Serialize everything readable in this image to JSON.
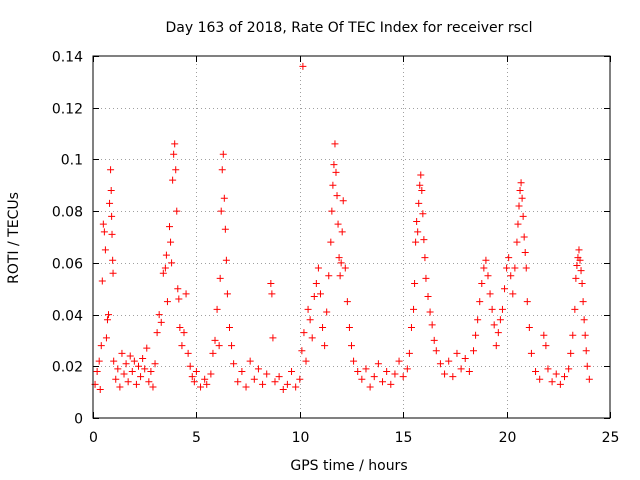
{
  "chart_data": {
    "type": "scatter",
    "title": "Day 163 of 2018, Rate Of TEC Index for receiver rscl",
    "xlabel": "GPS time / hours",
    "ylabel": "ROTI / TECUs",
    "xlim": [
      0,
      25
    ],
    "ylim": [
      0,
      0.14
    ],
    "xticks": [
      0,
      5,
      10,
      15,
      20,
      25
    ],
    "xtick_labels": [
      "0",
      "5",
      "10",
      "15",
      "20",
      "25"
    ],
    "yticks": [
      0,
      0.02,
      0.04,
      0.06,
      0.08,
      0.1,
      0.12,
      0.14
    ],
    "ytick_labels": [
      "0",
      "0.02",
      "0.04",
      "0.06",
      "0.08",
      "0.1",
      "0.12",
      "0.14"
    ],
    "grid": true,
    "marker": "+",
    "color": "#ff0000",
    "series": [
      {
        "name": "ROTI",
        "points": [
          [
            0.1,
            0.013
          ],
          [
            0.2,
            0.018
          ],
          [
            0.3,
            0.022
          ],
          [
            0.35,
            0.011
          ],
          [
            0.4,
            0.028
          ],
          [
            0.45,
            0.053
          ],
          [
            0.5,
            0.075
          ],
          [
            0.55,
            0.072
          ],
          [
            0.6,
            0.065
          ],
          [
            0.65,
            0.031
          ],
          [
            0.7,
            0.038
          ],
          [
            0.75,
            0.04
          ],
          [
            0.8,
            0.083
          ],
          [
            0.85,
            0.096
          ],
          [
            0.88,
            0.088
          ],
          [
            0.9,
            0.078
          ],
          [
            0.92,
            0.071
          ],
          [
            0.95,
            0.061
          ],
          [
            0.97,
            0.056
          ],
          [
            1.0,
            0.022
          ],
          [
            1.1,
            0.015
          ],
          [
            1.2,
            0.019
          ],
          [
            1.3,
            0.012
          ],
          [
            1.4,
            0.025
          ],
          [
            1.5,
            0.017
          ],
          [
            1.6,
            0.021
          ],
          [
            1.7,
            0.014
          ],
          [
            1.8,
            0.024
          ],
          [
            1.9,
            0.018
          ],
          [
            2.0,
            0.022
          ],
          [
            2.1,
            0.013
          ],
          [
            2.2,
            0.02
          ],
          [
            2.3,
            0.016
          ],
          [
            2.4,
            0.023
          ],
          [
            2.5,
            0.019
          ],
          [
            2.6,
            0.027
          ],
          [
            2.7,
            0.014
          ],
          [
            2.8,
            0.018
          ],
          [
            2.9,
            0.012
          ],
          [
            3.0,
            0.021
          ],
          [
            3.1,
            0.033
          ],
          [
            3.2,
            0.04
          ],
          [
            3.3,
            0.037
          ],
          [
            3.4,
            0.056
          ],
          [
            3.5,
            0.058
          ],
          [
            3.55,
            0.063
          ],
          [
            3.6,
            0.045
          ],
          [
            3.7,
            0.074
          ],
          [
            3.75,
            0.068
          ],
          [
            3.8,
            0.06
          ],
          [
            3.85,
            0.092
          ],
          [
            3.9,
            0.102
          ],
          [
            3.95,
            0.106
          ],
          [
            4.0,
            0.096
          ],
          [
            4.05,
            0.08
          ],
          [
            4.1,
            0.05
          ],
          [
            4.15,
            0.046
          ],
          [
            4.2,
            0.035
          ],
          [
            4.3,
            0.028
          ],
          [
            4.4,
            0.033
          ],
          [
            4.5,
            0.048
          ],
          [
            4.6,
            0.025
          ],
          [
            4.7,
            0.02
          ],
          [
            4.8,
            0.016
          ],
          [
            4.9,
            0.014
          ],
          [
            5.0,
            0.018
          ],
          [
            5.2,
            0.012
          ],
          [
            5.4,
            0.015
          ],
          [
            5.5,
            0.013
          ],
          [
            5.7,
            0.017
          ],
          [
            5.8,
            0.025
          ],
          [
            5.9,
            0.03
          ],
          [
            6.0,
            0.042
          ],
          [
            6.1,
            0.028
          ],
          [
            6.15,
            0.054
          ],
          [
            6.2,
            0.08
          ],
          [
            6.25,
            0.096
          ],
          [
            6.3,
            0.102
          ],
          [
            6.35,
            0.085
          ],
          [
            6.4,
            0.073
          ],
          [
            6.45,
            0.061
          ],
          [
            6.5,
            0.048
          ],
          [
            6.6,
            0.035
          ],
          [
            6.7,
            0.028
          ],
          [
            6.8,
            0.021
          ],
          [
            7.0,
            0.014
          ],
          [
            7.2,
            0.018
          ],
          [
            7.4,
            0.012
          ],
          [
            7.6,
            0.022
          ],
          [
            7.8,
            0.015
          ],
          [
            8.0,
            0.019
          ],
          [
            8.2,
            0.013
          ],
          [
            8.4,
            0.017
          ],
          [
            8.6,
            0.052
          ],
          [
            8.65,
            0.048
          ],
          [
            8.7,
            0.031
          ],
          [
            8.8,
            0.014
          ],
          [
            9.0,
            0.016
          ],
          [
            9.2,
            0.011
          ],
          [
            9.4,
            0.013
          ],
          [
            9.6,
            0.018
          ],
          [
            9.8,
            0.012
          ],
          [
            10.0,
            0.015
          ],
          [
            10.1,
            0.026
          ],
          [
            10.15,
            0.136
          ],
          [
            10.2,
            0.033
          ],
          [
            10.3,
            0.022
          ],
          [
            10.4,
            0.042
          ],
          [
            10.5,
            0.038
          ],
          [
            10.6,
            0.031
          ],
          [
            10.7,
            0.047
          ],
          [
            10.8,
            0.052
          ],
          [
            10.9,
            0.058
          ],
          [
            11.0,
            0.048
          ],
          [
            11.1,
            0.035
          ],
          [
            11.2,
            0.028
          ],
          [
            11.3,
            0.041
          ],
          [
            11.4,
            0.055
          ],
          [
            11.5,
            0.068
          ],
          [
            11.55,
            0.08
          ],
          [
            11.6,
            0.09
          ],
          [
            11.65,
            0.098
          ],
          [
            11.7,
            0.106
          ],
          [
            11.75,
            0.095
          ],
          [
            11.8,
            0.086
          ],
          [
            11.85,
            0.075
          ],
          [
            11.9,
            0.062
          ],
          [
            11.95,
            0.055
          ],
          [
            12.0,
            0.06
          ],
          [
            12.05,
            0.072
          ],
          [
            12.1,
            0.084
          ],
          [
            12.2,
            0.058
          ],
          [
            12.3,
            0.045
          ],
          [
            12.4,
            0.035
          ],
          [
            12.5,
            0.028
          ],
          [
            12.6,
            0.022
          ],
          [
            12.8,
            0.018
          ],
          [
            13.0,
            0.015
          ],
          [
            13.2,
            0.019
          ],
          [
            13.4,
            0.012
          ],
          [
            13.6,
            0.016
          ],
          [
            13.8,
            0.021
          ],
          [
            14.0,
            0.014
          ],
          [
            14.2,
            0.018
          ],
          [
            14.4,
            0.013
          ],
          [
            14.6,
            0.017
          ],
          [
            14.8,
            0.022
          ],
          [
            15.0,
            0.016
          ],
          [
            15.2,
            0.019
          ],
          [
            15.3,
            0.025
          ],
          [
            15.4,
            0.035
          ],
          [
            15.5,
            0.042
          ],
          [
            15.55,
            0.052
          ],
          [
            15.6,
            0.068
          ],
          [
            15.65,
            0.076
          ],
          [
            15.7,
            0.072
          ],
          [
            15.75,
            0.083
          ],
          [
            15.8,
            0.09
          ],
          [
            15.85,
            0.094
          ],
          [
            15.9,
            0.088
          ],
          [
            15.95,
            0.079
          ],
          [
            16.0,
            0.069
          ],
          [
            16.05,
            0.062
          ],
          [
            16.1,
            0.054
          ],
          [
            16.2,
            0.047
          ],
          [
            16.3,
            0.041
          ],
          [
            16.4,
            0.036
          ],
          [
            16.5,
            0.03
          ],
          [
            16.6,
            0.026
          ],
          [
            16.8,
            0.021
          ],
          [
            17.0,
            0.017
          ],
          [
            17.2,
            0.022
          ],
          [
            17.4,
            0.016
          ],
          [
            17.6,
            0.025
          ],
          [
            17.8,
            0.019
          ],
          [
            18.0,
            0.023
          ],
          [
            18.2,
            0.018
          ],
          [
            18.4,
            0.026
          ],
          [
            18.5,
            0.032
          ],
          [
            18.6,
            0.038
          ],
          [
            18.7,
            0.045
          ],
          [
            18.8,
            0.052
          ],
          [
            18.9,
            0.058
          ],
          [
            19.0,
            0.061
          ],
          [
            19.1,
            0.055
          ],
          [
            19.2,
            0.048
          ],
          [
            19.3,
            0.042
          ],
          [
            19.4,
            0.036
          ],
          [
            19.5,
            0.028
          ],
          [
            19.6,
            0.033
          ],
          [
            19.7,
            0.038
          ],
          [
            19.8,
            0.042
          ],
          [
            19.9,
            0.05
          ],
          [
            20.0,
            0.058
          ],
          [
            20.1,
            0.062
          ],
          [
            20.2,
            0.055
          ],
          [
            20.3,
            0.048
          ],
          [
            20.4,
            0.058
          ],
          [
            20.5,
            0.068
          ],
          [
            20.55,
            0.075
          ],
          [
            20.6,
            0.082
          ],
          [
            20.65,
            0.088
          ],
          [
            20.7,
            0.091
          ],
          [
            20.75,
            0.085
          ],
          [
            20.8,
            0.078
          ],
          [
            20.85,
            0.07
          ],
          [
            20.9,
            0.064
          ],
          [
            20.95,
            0.058
          ],
          [
            21.0,
            0.045
          ],
          [
            21.1,
            0.035
          ],
          [
            21.2,
            0.025
          ],
          [
            21.4,
            0.018
          ],
          [
            21.6,
            0.015
          ],
          [
            21.8,
            0.032
          ],
          [
            21.9,
            0.028
          ],
          [
            22.0,
            0.019
          ],
          [
            22.2,
            0.014
          ],
          [
            22.4,
            0.017
          ],
          [
            22.6,
            0.013
          ],
          [
            22.8,
            0.016
          ],
          [
            23.0,
            0.019
          ],
          [
            23.1,
            0.025
          ],
          [
            23.2,
            0.032
          ],
          [
            23.3,
            0.042
          ],
          [
            23.35,
            0.054
          ],
          [
            23.4,
            0.059
          ],
          [
            23.45,
            0.062
          ],
          [
            23.5,
            0.065
          ],
          [
            23.55,
            0.061
          ],
          [
            23.6,
            0.057
          ],
          [
            23.65,
            0.052
          ],
          [
            23.7,
            0.045
          ],
          [
            23.75,
            0.038
          ],
          [
            23.8,
            0.032
          ],
          [
            23.85,
            0.026
          ],
          [
            23.9,
            0.02
          ],
          [
            24.0,
            0.015
          ]
        ]
      }
    ]
  }
}
